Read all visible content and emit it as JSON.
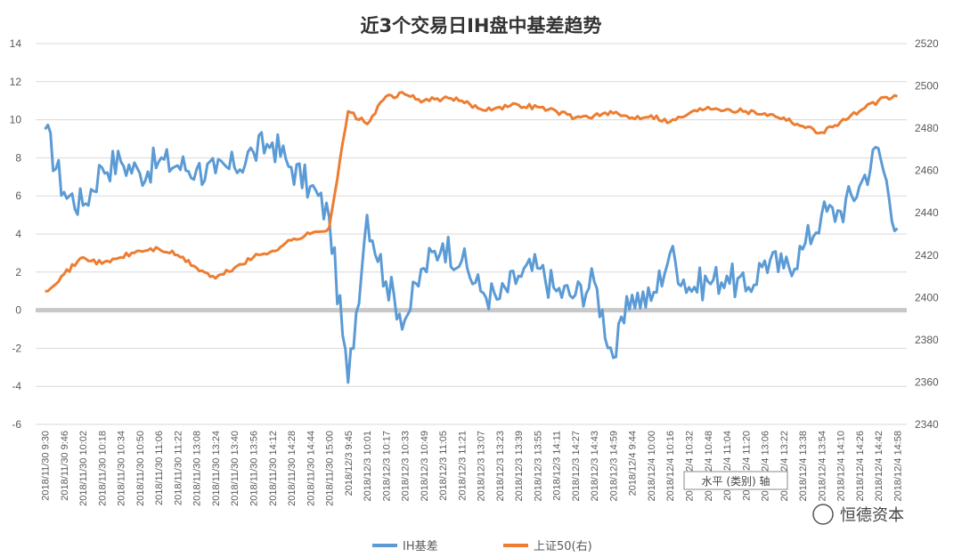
{
  "chart_data": {
    "type": "line",
    "title": "近3个交易日IH盘中基差趋势",
    "x": [
      "2018/11/30 9:30",
      "2018/11/30 9:46",
      "2018/11/30 10:02",
      "2018/11/30 10:18",
      "2018/11/30 10:34",
      "2018/11/30 10:50",
      "2018/11/30 11:06",
      "2018/11/30 11:22",
      "2018/11/30 13:08",
      "2018/11/30 13:24",
      "2018/11/30 13:40",
      "2018/11/30 13:56",
      "2018/11/30 14:12",
      "2018/11/30 14:28",
      "2018/11/30 14:44",
      "2018/11/30 15:00",
      "2018/12/3 9:45",
      "2018/12/3 10:01",
      "2018/12/3 10:17",
      "2018/12/3 10:33",
      "2018/12/3 10:49",
      "2018/12/3 11:05",
      "2018/12/3 11:21",
      "2018/12/3 13:07",
      "2018/12/3 13:23",
      "2018/12/3 13:39",
      "2018/12/3 13:55",
      "2018/12/3 14:11",
      "2018/12/3 14:27",
      "2018/12/3 14:43",
      "2018/12/3 14:59",
      "2018/12/4 9:44",
      "2018/12/4 10:00",
      "2018/12/4 10:16",
      "2018/12/4 10:32",
      "2018/12/4 10:48",
      "2018/12/4 11:04",
      "2018/12/4 11:20",
      "2018/12/4 13:06",
      "2018/12/4 13:22",
      "2018/12/4 13:38",
      "2018/12/4 13:54",
      "2018/12/4 14:10",
      "2018/12/4 14:26",
      "2018/12/4 14:42",
      "2018/12/4 14:58"
    ],
    "y_left": {
      "min": -6,
      "max": 14,
      "step": 2,
      "ticks": [
        "14",
        "12",
        "10",
        "8",
        "6",
        "4",
        "2",
        "0",
        "-2",
        "-4",
        "-6"
      ]
    },
    "y_right": {
      "min": 2340,
      "max": 2520,
      "step": 20,
      "ticks": [
        "2520",
        "2500",
        "2480",
        "2460",
        "2440",
        "2420",
        "2400",
        "2380",
        "2360",
        "2340"
      ]
    },
    "series": [
      {
        "name": "IH基差",
        "axis": "left",
        "color": "#5B9BD5",
        "values": [
          9.5,
          6.2,
          5.5,
          7.5,
          7.8,
          7.2,
          7.8,
          7.6,
          7.4,
          7.2,
          7.5,
          8.3,
          8.8,
          7.5,
          6.5,
          4.9,
          -3.8,
          5.0,
          1.5,
          -0.5,
          2.2,
          3.5,
          2.6,
          1.0,
          0.6,
          1.8,
          2.2,
          1.0,
          0.8,
          1.5,
          -2.5,
          0.8,
          0.5,
          3.0,
          1.2,
          1.5,
          1.8,
          1.0,
          2.6,
          2.2,
          3.2,
          5.0,
          5.2,
          6.5,
          8.5,
          4.3
        ]
      },
      {
        "name": "上证50(右)",
        "axis": "right",
        "color": "#ED7D31",
        "values": [
          2403,
          2411,
          2419,
          2416,
          2419,
          2422,
          2423,
          2420,
          2414,
          2409,
          2414,
          2419,
          2422,
          2427,
          2430,
          2433,
          2488,
          2482,
          2495,
          2496,
          2493,
          2494,
          2493,
          2489,
          2490,
          2491,
          2490,
          2488,
          2485,
          2486,
          2487,
          2485,
          2486,
          2483,
          2487,
          2490,
          2489,
          2488,
          2487,
          2485,
          2481,
          2478,
          2483,
          2488,
          2493,
          2495
        ]
      }
    ],
    "zero_line": 0,
    "legend_position": "bottom",
    "axis_tag": "水平 (类别) 轴",
    "watermark": "恒德资本",
    "grid": true
  }
}
